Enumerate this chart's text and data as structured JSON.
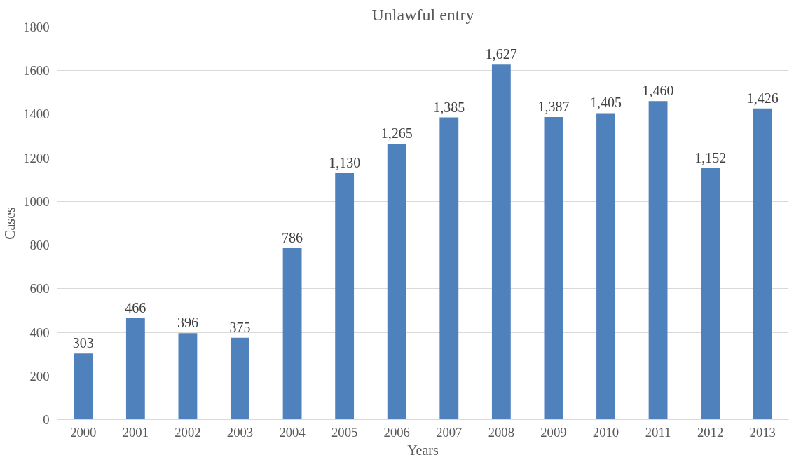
{
  "chart_data": {
    "type": "bar",
    "title": "Unlawful entry",
    "xlabel": "Years",
    "ylabel": "Cases",
    "categories": [
      "2000",
      "2001",
      "2002",
      "2003",
      "2004",
      "2005",
      "2006",
      "2007",
      "2008",
      "2009",
      "2010",
      "2011",
      "2012",
      "2013"
    ],
    "values": [
      303,
      466,
      396,
      375,
      786,
      1130,
      1265,
      1385,
      1627,
      1387,
      1405,
      1460,
      1152,
      1426
    ],
    "value_labels": [
      "303",
      "466",
      "396",
      "375",
      "786",
      "1,130",
      "1,265",
      "1,385",
      "1,627",
      "1,387",
      "1,405",
      "1,460",
      "1,152",
      "1,426"
    ],
    "color": "#4f81bd",
    "ylim": [
      0,
      1800
    ],
    "yticks": [
      0,
      200,
      400,
      600,
      800,
      1000,
      1200,
      1400,
      1600,
      1800
    ],
    "grid": "y"
  }
}
